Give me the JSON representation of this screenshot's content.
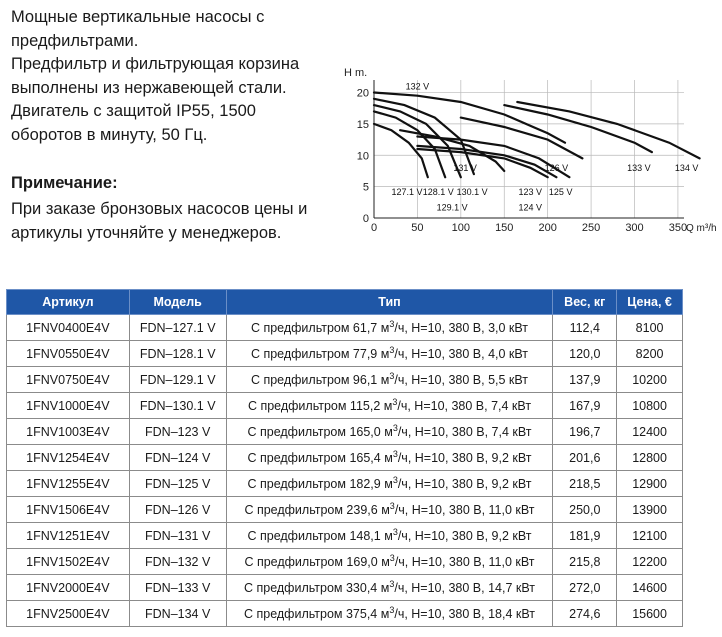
{
  "description": {
    "lines": [
      "Мощные вертикальные насосы с",
      "предфильтрами.",
      "Предфильтр и фильтрующая корзина",
      "выполнены из нержавеющей стали.",
      "Двигатель с защитой IP55, 1500",
      "оборотов в минуту, 50 Гц."
    ]
  },
  "note": {
    "title": "Примечание:",
    "lines": [
      "При заказе бронзовых насосов цены и",
      "артикулы уточняйте у менеджеров."
    ]
  },
  "chart_data": {
    "type": "line",
    "ylabel": "H m.",
    "xlabel": "Q m³/h",
    "xlim": [
      0,
      400
    ],
    "ylim": [
      0,
      22
    ],
    "xticks": [
      0,
      50,
      100,
      150,
      200,
      250,
      300,
      350
    ],
    "yticks": [
      0,
      5,
      10,
      15,
      20
    ],
    "grid": true,
    "series": [
      {
        "name": "127.1 V",
        "points": [
          [
            0,
            15
          ],
          [
            20,
            14
          ],
          [
            40,
            12
          ],
          [
            55,
            9.5
          ],
          [
            62,
            6.5
          ]
        ]
      },
      {
        "name": "128.1 V",
        "points": [
          [
            0,
            17
          ],
          [
            25,
            16
          ],
          [
            50,
            14
          ],
          [
            70,
            11
          ],
          [
            82,
            6.5
          ]
        ]
      },
      {
        "name": "129.1 V",
        "points": [
          [
            0,
            18
          ],
          [
            30,
            17
          ],
          [
            60,
            15
          ],
          [
            85,
            11.5
          ],
          [
            100,
            6.5
          ]
        ]
      },
      {
        "name": "130.1 V",
        "points": [
          [
            0,
            19
          ],
          [
            35,
            18
          ],
          [
            70,
            16
          ],
          [
            100,
            12.5
          ],
          [
            115,
            7
          ]
        ]
      },
      {
        "name": "131 V",
        "points": [
          [
            30,
            14
          ],
          [
            70,
            13
          ],
          [
            110,
            11.5
          ],
          [
            140,
            9
          ],
          [
            150,
            7.5
          ]
        ]
      },
      {
        "name": "123 V",
        "points": [
          [
            50,
            11
          ],
          [
            100,
            10.5
          ],
          [
            150,
            9.5
          ],
          [
            180,
            8
          ],
          [
            200,
            6.5
          ]
        ]
      },
      {
        "name": "124 V",
        "points": [
          [
            50,
            11.5
          ],
          [
            100,
            11
          ],
          [
            150,
            10
          ],
          [
            185,
            8.5
          ],
          [
            210,
            6.5
          ]
        ]
      },
      {
        "name": "125 V",
        "points": [
          [
            50,
            13
          ],
          [
            100,
            12.5
          ],
          [
            150,
            11.5
          ],
          [
            190,
            9.5
          ],
          [
            225,
            6.5
          ]
        ]
      },
      {
        "name": "126 V",
        "points": [
          [
            100,
            16
          ],
          [
            150,
            14.5
          ],
          [
            200,
            12.5
          ],
          [
            240,
            9.5
          ]
        ]
      },
      {
        "name": "132 V",
        "points": [
          [
            0,
            20
          ],
          [
            50,
            19.5
          ],
          [
            100,
            18.5
          ],
          [
            150,
            16.5
          ],
          [
            200,
            13.5
          ],
          [
            220,
            12
          ]
        ]
      },
      {
        "name": "133 V",
        "points": [
          [
            150,
            18
          ],
          [
            200,
            16.5
          ],
          [
            250,
            14.5
          ],
          [
            300,
            12
          ],
          [
            320,
            10.5
          ]
        ]
      },
      {
        "name": "134 V",
        "points": [
          [
            165,
            18.5
          ],
          [
            225,
            17
          ],
          [
            280,
            15
          ],
          [
            340,
            12
          ],
          [
            375,
            9.5
          ]
        ]
      }
    ],
    "label_positions": {
      "132 V": [
        50,
        20.5
      ],
      "131 V": [
        105,
        7.5
      ],
      "126 V": [
        210,
        7.5
      ],
      "133 V": [
        305,
        7.5
      ],
      "134 V": [
        360,
        7.5
      ],
      "127.1 V": [
        38,
        3.7
      ],
      "128.1 V": [
        74,
        3.7
      ],
      "130.1 V": [
        113,
        3.7
      ],
      "123 V": [
        180,
        3.7
      ],
      "125 V": [
        215,
        3.7
      ],
      "129.1 V": [
        90,
        1.2
      ],
      "124 V": [
        180,
        1.2
      ]
    }
  },
  "table": {
    "headers": [
      "Артикул",
      "Модель",
      "Тип",
      "Вес,  кг",
      "Цена, €"
    ],
    "rows": [
      {
        "art": "1FNV0400E4V",
        "model": "FDN–127.1 V",
        "flow": "С предфильтром 61,7 м",
        "sup": "3",
        "rest": "/ч, H=10, 380 В, 3,0 кВт",
        "weight": "112,4",
        "price": "8100"
      },
      {
        "art": "1FNV0550E4V",
        "model": "FDN–128.1 V",
        "flow": "С предфильтром 77,9 м",
        "sup": "3",
        "rest": "/ч, H=10, 380 В, 4,0 кВт",
        "weight": "120,0",
        "price": "8200"
      },
      {
        "art": "1FNV0750E4V",
        "model": "FDN–129.1 V",
        "flow": "С предфильтром 96,1 м",
        "sup": "3",
        "rest": "/ч, H=10, 380 В, 5,5 кВт",
        "weight": "137,9",
        "price": "10200"
      },
      {
        "art": "1FNV1000E4V",
        "model": "FDN–130.1 V",
        "flow": "С предфильтром 115,2 м",
        "sup": "3",
        "rest": "/ч, H=10, 380 В, 7,4 кВт",
        "weight": "167,9",
        "price": "10800"
      },
      {
        "art": "1FNV1003E4V",
        "model": "FDN–123 V",
        "flow": "С предфильтром 165,0 м",
        "sup": "3",
        "rest": "/ч, H=10, 380 В, 7,4 кВт",
        "weight": "196,7",
        "price": "12400"
      },
      {
        "art": "1FNV1254E4V",
        "model": "FDN–124 V",
        "flow": "С предфильтром 165,4 м",
        "sup": "3",
        "rest": "/ч, H=10, 380 В, 9,2 кВт",
        "weight": "201,6",
        "price": "12800"
      },
      {
        "art": "1FNV1255E4V",
        "model": "FDN–125 V",
        "flow": "С предфильтром 182,9 м",
        "sup": "3",
        "rest": "/ч, H=10, 380 В, 9,2 кВт",
        "weight": "218,5",
        "price": "12900"
      },
      {
        "art": "1FNV1506E4V",
        "model": "FDN–126 V",
        "flow": "С предфильтром 239,6 м",
        "sup": "3",
        "rest": "/ч, H=10, 380 В, 11,0 кВт",
        "weight": "250,0",
        "price": "13900"
      },
      {
        "art": "1FNV1251E4V",
        "model": "FDN–131 V",
        "flow": "С предфильтром 148,1 м",
        "sup": "3",
        "rest": "/ч, H=10, 380 В, 9,2 кВт",
        "weight": "181,9",
        "price": "12100"
      },
      {
        "art": "1FNV1502E4V",
        "model": "FDN–132 V",
        "flow": "С предфильтром 169,0 м",
        "sup": "3",
        "rest": "/ч, H=10, 380 В, 11,0 кВт",
        "weight": "215,8",
        "price": "12200"
      },
      {
        "art": "1FNV2000E4V",
        "model": "FDN–133 V",
        "flow": "С предфильтром 330,4 м",
        "sup": "3",
        "rest": "/ч, H=10, 380 В, 14,7 кВт",
        "weight": "272,0",
        "price": "14600"
      },
      {
        "art": "1FNV2500E4V",
        "model": "FDN–134 V",
        "flow": "С предфильтром 375,4 м",
        "sup": "3",
        "rest": "/ч, H=10, 380 В, 18,4 кВт",
        "weight": "274,6",
        "price": "15600"
      }
    ]
  }
}
